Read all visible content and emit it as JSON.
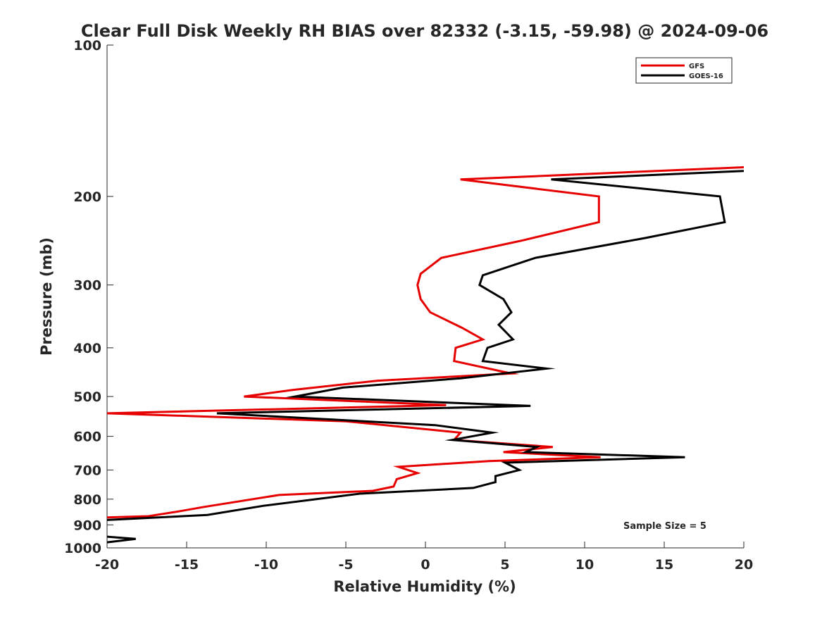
{
  "chart_data": {
    "type": "line",
    "title": "Clear Full Disk Weekly RH BIAS over 82332 (-3.15, -59.98) @ 2024-09-06",
    "xlabel": "Relative Humidity (%)",
    "ylabel": "Pressure (mb)",
    "xlim": [
      -20,
      20
    ],
    "ylim": [
      100,
      1000
    ],
    "y_scale": "log",
    "y_reversed": true,
    "x_ticks": [
      "-20",
      "-15",
      "-10",
      "-5",
      "0",
      "5",
      "10",
      "15",
      "20"
    ],
    "y_ticks": [
      "100",
      "200",
      "300",
      "400",
      "500",
      "600",
      "700",
      "800",
      "900",
      "1000"
    ],
    "grid": false,
    "legend_position": "top-right",
    "annotation": "Sample Size = 5",
    "series": [
      {
        "name": "GFS",
        "color": "#e60000",
        "points": [
          {
            "x": 20.0,
            "y": 175
          },
          {
            "x": 2.2,
            "y": 185
          },
          {
            "x": 10.9,
            "y": 200
          },
          {
            "x": 10.9,
            "y": 225
          },
          {
            "x": 6.0,
            "y": 245
          },
          {
            "x": 1.0,
            "y": 265
          },
          {
            "x": -0.3,
            "y": 285
          },
          {
            "x": -0.5,
            "y": 300
          },
          {
            "x": -0.3,
            "y": 320
          },
          {
            "x": 0.3,
            "y": 340
          },
          {
            "x": 2.3,
            "y": 365
          },
          {
            "x": 3.6,
            "y": 385
          },
          {
            "x": 1.9,
            "y": 400
          },
          {
            "x": 1.8,
            "y": 425
          },
          {
            "x": 5.4,
            "y": 450
          },
          {
            "x": -3.0,
            "y": 465
          },
          {
            "x": -8.3,
            "y": 485
          },
          {
            "x": -11.4,
            "y": 500
          },
          {
            "x": 1.3,
            "y": 520
          },
          {
            "x": -20.0,
            "y": 540
          },
          {
            "x": -5.0,
            "y": 560
          },
          {
            "x": 2.2,
            "y": 590
          },
          {
            "x": 1.8,
            "y": 610
          },
          {
            "x": 8.0,
            "y": 630
          },
          {
            "x": 4.9,
            "y": 645
          },
          {
            "x": 11.0,
            "y": 660
          },
          {
            "x": 4.0,
            "y": 672
          },
          {
            "x": -1.7,
            "y": 690
          },
          {
            "x": -0.5,
            "y": 710
          },
          {
            "x": -1.8,
            "y": 730
          },
          {
            "x": -2.0,
            "y": 755
          },
          {
            "x": -3.3,
            "y": 770
          },
          {
            "x": -9.2,
            "y": 785
          },
          {
            "x": -14.0,
            "y": 830
          },
          {
            "x": -15.4,
            "y": 845
          },
          {
            "x": -17.4,
            "y": 865
          },
          {
            "x": -20.0,
            "y": 870
          }
        ]
      },
      {
        "name": "GOES-16",
        "color": "#000000",
        "points": [
          {
            "x": 20.0,
            "y": 178
          },
          {
            "x": 7.9,
            "y": 185
          },
          {
            "x": 18.5,
            "y": 200
          },
          {
            "x": 18.8,
            "y": 225
          },
          {
            "x": 13.8,
            "y": 242
          },
          {
            "x": 6.9,
            "y": 265
          },
          {
            "x": 3.6,
            "y": 287
          },
          {
            "x": 3.4,
            "y": 300
          },
          {
            "x": 4.9,
            "y": 320
          },
          {
            "x": 5.4,
            "y": 340
          },
          {
            "x": 4.6,
            "y": 360
          },
          {
            "x": 5.5,
            "y": 385
          },
          {
            "x": 3.9,
            "y": 400
          },
          {
            "x": 3.6,
            "y": 425
          },
          {
            "x": 7.6,
            "y": 440
          },
          {
            "x": 2.2,
            "y": 460
          },
          {
            "x": -5.2,
            "y": 480
          },
          {
            "x": -8.2,
            "y": 500
          },
          {
            "x": 6.6,
            "y": 522
          },
          {
            "x": -13.1,
            "y": 540
          },
          {
            "x": 0.6,
            "y": 570
          },
          {
            "x": 4.2,
            "y": 590
          },
          {
            "x": 1.7,
            "y": 610
          },
          {
            "x": 7.0,
            "y": 630
          },
          {
            "x": 6.3,
            "y": 645
          },
          {
            "x": 16.3,
            "y": 660
          },
          {
            "x": 5.0,
            "y": 677
          },
          {
            "x": 5.9,
            "y": 700
          },
          {
            "x": 4.4,
            "y": 720
          },
          {
            "x": 4.4,
            "y": 740
          },
          {
            "x": 3.0,
            "y": 760
          },
          {
            "x": -4.1,
            "y": 780
          },
          {
            "x": -10.2,
            "y": 825
          },
          {
            "x": -13.7,
            "y": 860
          },
          {
            "x": -20.0,
            "y": 880
          }
        ],
        "points_low": [
          {
            "x": -20.0,
            "y": 950
          },
          {
            "x": -18.2,
            "y": 960
          },
          {
            "x": -20.0,
            "y": 975
          }
        ]
      }
    ]
  }
}
